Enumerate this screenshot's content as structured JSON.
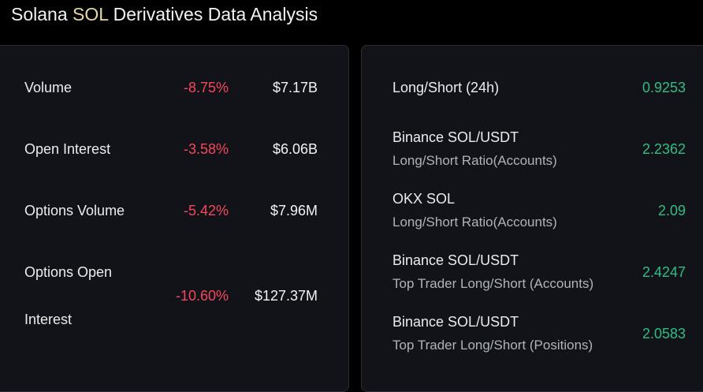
{
  "page": {
    "title_main": "Solana ",
    "title_sym": "SOL",
    "title_rest": " Derivatives Data Analysis"
  },
  "colors": {
    "background": "#000000",
    "panel": "#121318",
    "panel_border": "#2a2d35",
    "negative": "#f6465d",
    "positive": "#2ebd85",
    "text": "#eaecef",
    "muted": "#aeb4bc"
  },
  "left_panel": {
    "rows": [
      {
        "label": "Volume",
        "change": "-8.75%",
        "value": "$7.17B"
      },
      {
        "label": "Open Interest",
        "change": "-3.58%",
        "value": "$6.06B"
      },
      {
        "label": "Options Volume",
        "change": "-5.42%",
        "value": "$7.96M"
      },
      {
        "label_line1": "Options Open",
        "label_line2": "Interest",
        "change": "-10.60%",
        "value": "$127.37M"
      }
    ]
  },
  "right_panel": {
    "rows": [
      {
        "label": "Long/Short (24h)",
        "value": "0.9253"
      },
      {
        "label": "Binance SOL/USDT",
        "sub": "Long/Short Ratio(Accounts)",
        "value": "2.2362"
      },
      {
        "label": "OKX SOL",
        "sub": "Long/Short Ratio(Accounts)",
        "value": "2.09"
      },
      {
        "label": "Binance SOL/USDT",
        "sub": "Top Trader Long/Short (Accounts)",
        "value": "2.4247"
      },
      {
        "label": "Binance SOL/USDT",
        "sub": "Top Trader Long/Short (Positions)",
        "value": "2.0583"
      }
    ]
  }
}
